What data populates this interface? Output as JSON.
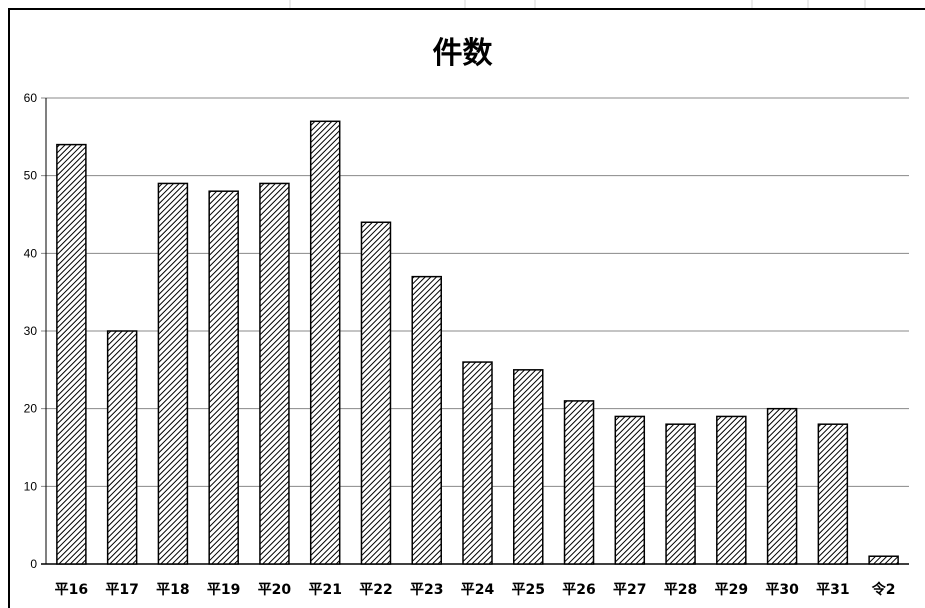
{
  "chart_data": {
    "type": "bar",
    "title": "件数",
    "categories": [
      "平16",
      "平17",
      "平18",
      "平19",
      "平20",
      "平21",
      "平22",
      "平23",
      "平24",
      "平25",
      "平26",
      "平27",
      "平28",
      "平29",
      "平30",
      "平31",
      "令2"
    ],
    "values": [
      54,
      30,
      49,
      48,
      49,
      57,
      44,
      37,
      26,
      25,
      21,
      19,
      18,
      19,
      20,
      18,
      1
    ],
    "ylim": [
      0,
      60
    ],
    "yticks": [
      0,
      10,
      20,
      30,
      40,
      50,
      60
    ],
    "xlabel": "",
    "ylabel": "",
    "grid": true,
    "bar_pattern": "diagonal-hatch",
    "colors": {
      "bar_fill": "#ffffff",
      "bar_hatch": "#000000",
      "grid": "#888888"
    }
  }
}
